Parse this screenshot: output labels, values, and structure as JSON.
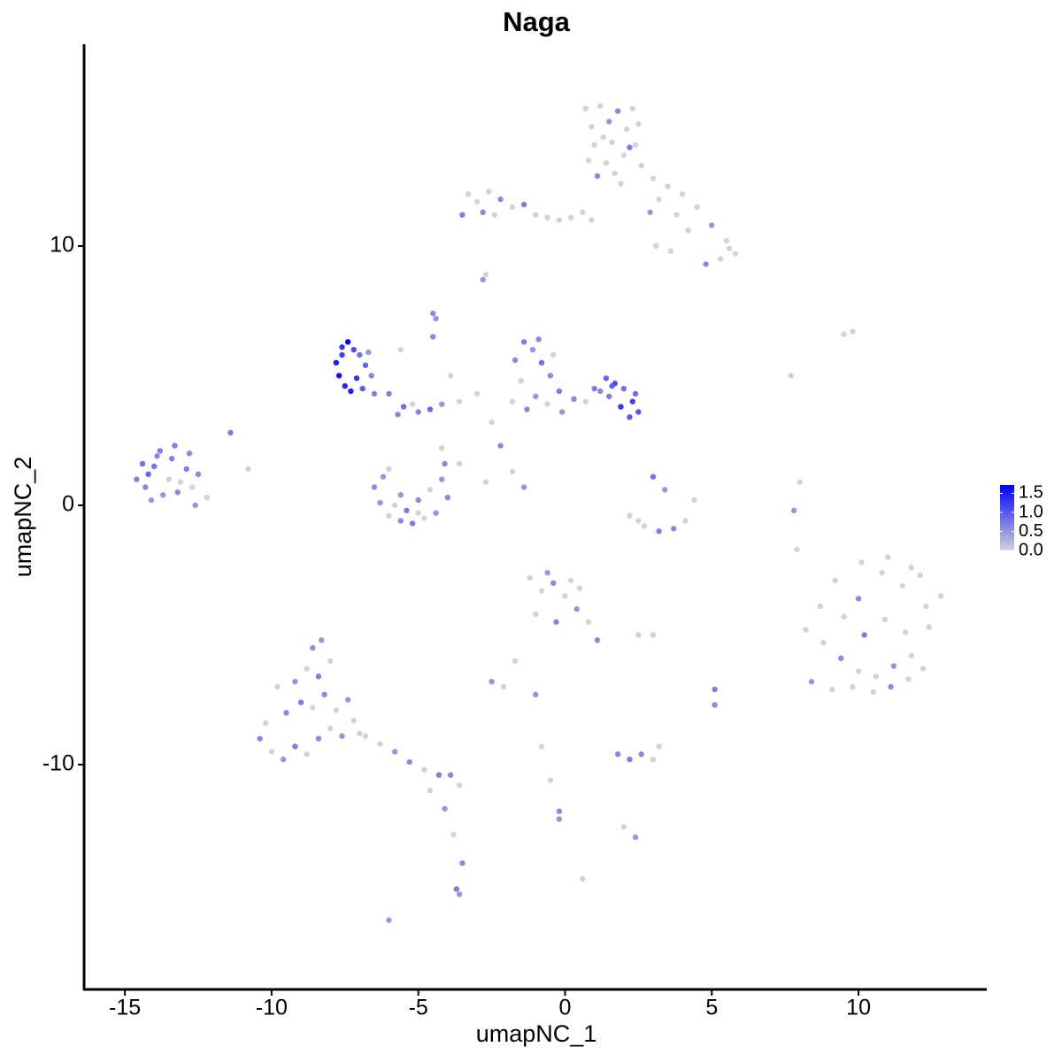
{
  "chart_data": {
    "type": "scatter",
    "title": "Naga",
    "x_label": "umapNC_1",
    "y_label": "umapNC_2",
    "x": [
      0.7,
      1.2,
      1.8,
      2.3,
      0.9,
      1.5,
      2.1,
      2.5,
      1.0,
      1.6,
      2.2,
      0.8,
      1.4,
      2.0,
      2.6,
      1.1,
      1.7,
      1.3,
      1.9,
      2.4,
      3.0,
      3.5,
      4.0,
      4.5,
      5.0,
      5.5,
      5.8,
      5.3,
      4.8,
      3.8,
      3.2,
      4.2,
      5.6,
      2.9,
      -3.3,
      -3.0,
      -2.6,
      -2.2,
      -1.8,
      -1.4,
      -1.0,
      -0.6,
      -0.2,
      0.2,
      0.6,
      0.9,
      -2.8,
      -2.4,
      3.1,
      3.6,
      -3.5,
      -2.8,
      -2.7,
      -4.5,
      -4.4,
      -14.6,
      -14.3,
      -14.0,
      -13.7,
      -13.4,
      -13.1,
      -12.8,
      -12.5,
      -12.2,
      -14.4,
      -14.1,
      -13.8,
      -13.5,
      -13.2,
      -12.9,
      -12.6,
      -14.2,
      -13.9,
      -13.3,
      -12.7,
      -11.4,
      -10.8,
      -7.8,
      -7.6,
      -7.4,
      -7.2,
      -7.0,
      -6.8,
      -6.6,
      -7.7,
      -7.5,
      -7.3,
      -6.9,
      -6.5,
      -7.6,
      -7.1,
      -6.7,
      -6.0,
      -5.5,
      -5.0,
      -4.6,
      -4.2,
      -5.7,
      -5.2,
      -3.6,
      -3.0,
      -2.5,
      -5.6,
      -4.5,
      -3.9,
      -1.7,
      -1.4,
      -1.1,
      -0.8,
      -0.5,
      -0.2,
      -1.5,
      -1.0,
      -0.6,
      -1.3,
      -0.9,
      -0.4,
      -1.8,
      -0.1,
      0.3,
      0.7,
      1.0,
      1.4,
      1.7,
      2.0,
      2.3,
      2.5,
      1.5,
      1.9,
      2.2,
      1.6,
      2.4,
      1.2,
      -6.5,
      -6.3,
      -6.0,
      -5.6,
      -5.2,
      -4.8,
      -4.4,
      -4.0,
      -6.2,
      -5.8,
      -5.0,
      -4.2,
      -6.0,
      -5.4,
      -4.6,
      -4.1,
      -5.6,
      -5.0,
      -4.2,
      -3.6,
      -2.2,
      -1.8,
      -2.7,
      -1.4,
      2.2,
      2.7,
      3.2,
      3.7,
      4.1,
      4.4,
      3.0,
      3.4,
      2.5,
      8.2,
      8.8,
      9.4,
      10.0,
      10.6,
      11.2,
      11.8,
      12.4,
      12.8,
      8.4,
      9.1,
      9.8,
      10.5,
      11.1,
      11.7,
      12.2,
      8.7,
      9.5,
      10.2,
      10.9,
      11.6,
      12.3,
      9.2,
      10.0,
      10.8,
      11.5,
      12.1,
      10.1,
      11.0,
      11.8,
      -1.2,
      -0.8,
      -0.4,
      0.0,
      0.4,
      0.8,
      1.1,
      -1.0,
      -0.3,
      0.5,
      -0.6,
      0.2,
      -2.5,
      -2.1,
      -1.7,
      2.5,
      3.0,
      5.1,
      5.1,
      -1.0,
      -10.4,
      -10.0,
      -9.6,
      -9.2,
      -8.8,
      -8.4,
      -8.0,
      -7.6,
      -7.2,
      -9.5,
      -9.0,
      -8.6,
      -8.2,
      -7.8,
      -9.2,
      -8.8,
      -8.4,
      -8.0,
      -8.6,
      -8.3,
      -10.2,
      -9.8,
      -7.4,
      -7.0,
      -6.8,
      -6.3,
      -5.8,
      -5.3,
      -4.8,
      -4.3,
      -3.9,
      -3.6,
      -4.1,
      -3.8,
      -3.5,
      -3.6,
      -4.6,
      -3.7,
      -0.8,
      -0.5,
      -0.2,
      1.8,
      2.2,
      2.6,
      3.0,
      3.2,
      2.0,
      2.4,
      -0.2,
      0.6,
      -6.0,
      7.8,
      8.0,
      7.7,
      9.5,
      9.8,
      7.9
    ],
    "values": [
      15.3,
      15.4,
      15.2,
      15.3,
      14.6,
      14.8,
      14.5,
      14.7,
      13.9,
      14.0,
      13.8,
      13.3,
      13.2,
      13.5,
      13.1,
      12.7,
      12.8,
      14.2,
      12.4,
      13.9,
      12.6,
      12.3,
      12.0,
      11.5,
      10.8,
      10.2,
      9.7,
      9.5,
      9.3,
      11.2,
      11.8,
      10.6,
      9.9,
      11.3,
      12.0,
      11.7,
      12.1,
      11.8,
      11.5,
      11.6,
      11.2,
      11.1,
      11.0,
      11.1,
      11.3,
      11.0,
      11.3,
      11.2,
      10.0,
      9.8,
      11.2,
      8.7,
      8.9,
      7.4,
      7.2,
      1.0,
      0.7,
      1.5,
      0.4,
      1.8,
      0.9,
      2.0,
      1.2,
      0.3,
      1.6,
      0.2,
      2.1,
      1.0,
      0.5,
      1.4,
      0.0,
      1.2,
      1.9,
      2.3,
      0.7,
      2.8,
      1.4,
      5.5,
      6.1,
      6.3,
      6.0,
      5.8,
      5.4,
      5.0,
      5.0,
      4.6,
      4.4,
      4.5,
      4.3,
      5.8,
      4.9,
      5.9,
      4.3,
      3.8,
      3.6,
      3.7,
      3.9,
      3.5,
      3.9,
      4.0,
      4.3,
      3.2,
      6.0,
      6.5,
      5.0,
      5.6,
      6.3,
      6.0,
      5.5,
      5.0,
      4.4,
      4.8,
      4.2,
      3.9,
      3.7,
      6.4,
      5.8,
      4.0,
      3.6,
      4.1,
      4.0,
      4.5,
      4.9,
      4.7,
      4.5,
      4.0,
      3.6,
      4.2,
      3.8,
      3.4,
      4.6,
      4.3,
      4.4,
      0.7,
      0.1,
      -0.4,
      -0.6,
      -0.7,
      -0.5,
      -0.3,
      0.3,
      1.1,
      0.0,
      0.2,
      1.0,
      1.4,
      -0.2,
      0.6,
      1.6,
      0.4,
      -0.3,
      2.2,
      1.6,
      2.3,
      1.3,
      0.9,
      0.7,
      -0.4,
      -0.8,
      -1.0,
      -0.9,
      -0.6,
      0.2,
      1.1,
      0.6,
      -0.6,
      -4.8,
      -5.3,
      -5.9,
      -6.4,
      -6.6,
      -6.2,
      -5.8,
      -4.7,
      -3.5,
      -6.8,
      -7.1,
      -7.0,
      -7.2,
      -7.0,
      -6.7,
      -6.3,
      -3.9,
      -4.3,
      -5.0,
      -4.4,
      -4.9,
      -3.9,
      -2.9,
      -3.6,
      -2.6,
      -3.1,
      -2.7,
      -2.2,
      -2.0,
      -2.4,
      -2.8,
      -3.3,
      -3.0,
      -3.5,
      -4.0,
      -4.5,
      -5.2,
      -4.2,
      -4.5,
      -3.2,
      -2.6,
      -2.9,
      -6.8,
      -7.0,
      -6.0,
      -5.0,
      -5.0,
      -7.1,
      -7.7,
      -7.3,
      -9.0,
      -9.5,
      -9.8,
      -9.3,
      -9.6,
      -9.0,
      -8.6,
      -8.9,
      -8.3,
      -8.0,
      -7.6,
      -7.8,
      -7.3,
      -7.9,
      -6.8,
      -6.3,
      -6.6,
      -6.0,
      -5.5,
      -5.2,
      -8.4,
      -7.0,
      -7.5,
      -8.8,
      -8.9,
      -9.2,
      -9.5,
      -9.9,
      -10.2,
      -10.4,
      -10.4,
      -10.8,
      -11.7,
      -12.7,
      -13.8,
      -15.0,
      -11.0,
      -14.8,
      -9.3,
      -10.6,
      -11.8,
      -9.6,
      -9.8,
      -9.6,
      -9.8,
      -9.3,
      -12.4,
      -12.8,
      -12.1,
      -14.4,
      -16.0,
      -0.2,
      0.9,
      5.0,
      6.6,
      6.7,
      -1.7
    ],
    "expression": [
      0,
      0,
      0.6,
      0,
      0,
      0.5,
      0,
      0,
      0,
      0,
      0.7,
      0,
      0,
      0,
      0,
      0.6,
      0,
      0,
      0,
      0,
      0,
      0,
      0,
      0,
      0.5,
      0,
      0,
      0,
      0.6,
      0,
      0,
      0,
      0,
      0.5,
      0,
      0,
      0,
      0.6,
      0,
      0.7,
      0,
      0,
      0,
      0,
      0,
      0,
      0.6,
      0,
      0,
      0,
      0.7,
      0.5,
      0,
      0.6,
      0.5,
      0.7,
      0.6,
      0.8,
      0.5,
      0.7,
      0,
      0.6,
      0.6,
      0,
      0.8,
      0.5,
      0.7,
      0,
      0.6,
      0.7,
      0.5,
      0.9,
      0.6,
      0.7,
      0,
      0.7,
      0,
      1.5,
      1.3,
      1.7,
      1.1,
      0.8,
      0.9,
      0.6,
      1.6,
      1.4,
      1.5,
      1.0,
      0.7,
      1.2,
      1.3,
      0.5,
      0.7,
      0.8,
      0.6,
      0.9,
      0.5,
      0.6,
      0,
      0,
      0,
      0,
      0,
      0.6,
      0,
      0.6,
      0.7,
      0.5,
      0.8,
      0.6,
      0.7,
      0,
      0.5,
      0,
      0.6,
      0.6,
      0,
      0,
      0.5,
      0.6,
      0,
      0.7,
      0.9,
      1.1,
      0.8,
      1.2,
      1.0,
      0.7,
      1.3,
      1.0,
      0.9,
      0.8,
      0.6,
      0.6,
      0.5,
      0,
      0.6,
      0.7,
      0,
      0.5,
      0.6,
      0.5,
      0,
      0.6,
      0.5,
      0,
      0.7,
      0,
      0.6,
      0.5,
      0,
      0,
      0,
      0.6,
      0,
      0,
      0.5,
      0,
      0,
      0.7,
      0.6,
      0,
      0,
      0.8,
      0.5,
      0,
      0,
      0,
      0.6,
      0,
      0,
      0.5,
      0,
      0,
      0,
      0.5,
      0,
      0,
      0,
      0.6,
      0,
      0,
      0,
      0,
      0.7,
      0,
      0,
      0,
      0,
      0.6,
      0,
      0,
      0,
      0,
      0,
      0,
      0,
      0,
      0.6,
      0,
      0.5,
      0,
      0.6,
      0,
      0.6,
      0,
      0.5,
      0,
      0.5,
      0,
      0,
      0,
      0,
      0.7,
      0.6,
      0.5,
      0.6,
      0,
      0.5,
      0.7,
      0,
      0.6,
      0,
      0.5,
      0,
      0.6,
      0.7,
      0,
      0.6,
      0,
      0.5,
      0,
      0.7,
      0,
      0.6,
      0.5,
      0,
      0,
      0.5,
      0,
      0,
      0,
      0.5,
      0.6,
      0,
      0.7,
      0.6,
      0,
      0.5,
      0,
      0.6,
      0.5,
      0,
      0.7,
      0,
      0,
      0.6,
      0.6,
      0.7,
      0.6,
      0,
      0,
      0,
      0.5,
      0.5,
      0,
      0.5,
      0.5,
      0,
      0,
      0,
      0,
      0
    ],
    "xlim": [
      -16.39,
      14.37
    ],
    "ylim": [
      -18.67,
      17.78
    ],
    "xticks": [
      -15,
      -10,
      -5,
      0,
      5,
      10
    ],
    "yticks": [
      -10,
      0,
      10
    ],
    "colorbar": {
      "low_color": "#d3d3d3",
      "high_color": "#0000ff",
      "lim": [
        0,
        1.72
      ],
      "ticks": [
        {
          "value": 0,
          "label": "0.0"
        },
        0.5,
        {
          "value": 1,
          "label": "1.0"
        },
        1.5
      ]
    }
  }
}
